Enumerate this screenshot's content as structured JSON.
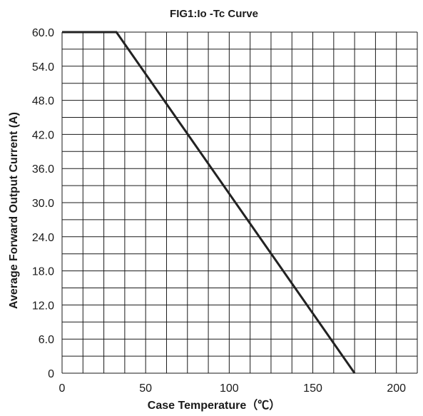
{
  "chart_data": {
    "type": "line",
    "title": "FIG1:Io -Tc Curve",
    "xlabel": "Case Temperature（℃）",
    "ylabel": "Average Forward Output Current (A)",
    "xlim": [
      0,
      212.5
    ],
    "ylim": [
      0,
      60
    ],
    "x_ticks": [
      0,
      50,
      100,
      150,
      200
    ],
    "x_tick_labels": [
      "0",
      "50",
      "100",
      "150",
      "200"
    ],
    "y_ticks": [
      0,
      6,
      12,
      18,
      24,
      30,
      36,
      42,
      48,
      54,
      60
    ],
    "y_tick_labels": [
      "0",
      "6.0",
      "12.0",
      "18.0",
      "24.0",
      "30.0",
      "36.0",
      "42.0",
      "48.0",
      "54.0",
      "60.0"
    ],
    "grid": true,
    "grid_x_step": 12.5,
    "grid_y_step": 3,
    "line_color": "#222222",
    "series": [
      {
        "x": [
          0,
          32.5,
          175
        ],
        "y": [
          60,
          60,
          0
        ]
      }
    ]
  }
}
